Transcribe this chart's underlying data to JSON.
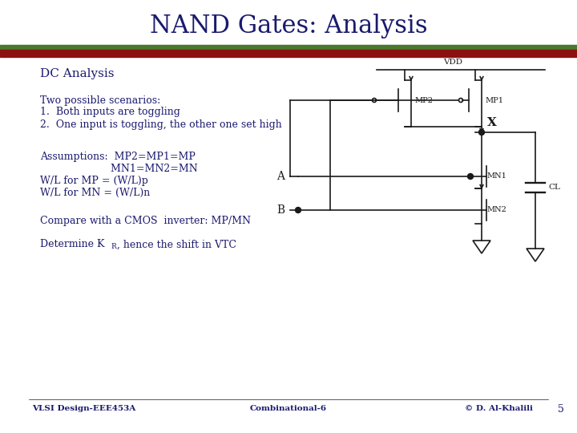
{
  "title": "NAND Gates: Analysis",
  "title_color": "#1a1a6e",
  "title_fontsize": 22,
  "bg_color": "#ffffff",
  "header_bar_green_color": "#4a7a2e",
  "header_bar_red_color": "#8b1010",
  "text_color": "#1a1a6e",
  "circuit_color": "#1a1a1a",
  "footer_color": "#1a1a6e",
  "footer_left": "VLSI Design-EEE453A",
  "footer_center": "Combinational-6",
  "footer_right": "© D. Al-Khalili",
  "footer_page": "5"
}
